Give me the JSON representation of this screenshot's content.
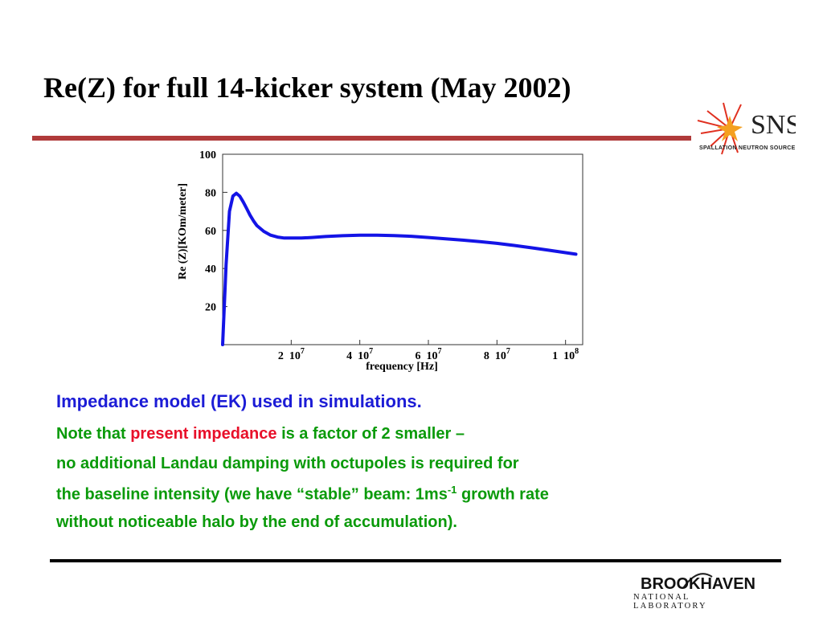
{
  "slide": {
    "title": "Re(Z) for full 14-kicker system (May 2002)"
  },
  "colors": {
    "title_rule": "#b03a3a",
    "curve": "#1414e6",
    "text_blue": "#1c1cd6",
    "text_green": "#0a9a0a",
    "text_red": "#e8102a"
  },
  "logos": {
    "sns": {
      "main": "SNS",
      "sub": "SPALLATION NEUTRON SOURCE",
      "icon": "starburst-logo-icon"
    },
    "bnl": {
      "name": "BROOKHAVEN",
      "sub": "NATIONAL LABORATORY"
    }
  },
  "chart_data": {
    "type": "line",
    "xlabel": "frequency [Hz]",
    "ylabel": "Re (Z)[KOm/meter]",
    "xlim": [
      0,
      105000000
    ],
    "ylim": [
      0,
      100
    ],
    "grid": false,
    "x_ticks": [
      {
        "coef": "2",
        "exp": "7",
        "value": 20000000
      },
      {
        "coef": "4",
        "exp": "7",
        "value": 40000000
      },
      {
        "coef": "6",
        "exp": "7",
        "value": 60000000
      },
      {
        "coef": "8",
        "exp": "7",
        "value": 80000000
      },
      {
        "coef": "1",
        "exp": "8",
        "value": 100000000
      }
    ],
    "y_ticks": [
      "20",
      "40",
      "60",
      "80",
      "100"
    ],
    "series": [
      {
        "x": [
          0,
          1000000,
          2000000,
          3000000,
          4000000,
          5000000,
          6000000,
          7000000,
          8000000,
          9000000,
          10000000,
          12000000,
          14000000,
          16000000,
          18000000,
          20000000,
          23000000,
          26000000,
          30000000,
          35000000,
          40000000,
          45000000,
          50000000,
          55000000,
          60000000,
          65000000,
          70000000,
          75000000,
          80000000,
          85000000,
          90000000,
          95000000,
          100000000,
          103000000
        ],
        "y": [
          0,
          42,
          70,
          78,
          79.5,
          78,
          75,
          71.5,
          68,
          65,
          62.5,
          59.5,
          57.5,
          56.5,
          56,
          56,
          56,
          56.3,
          56.8,
          57.2,
          57.5,
          57.5,
          57.3,
          56.9,
          56.3,
          55.6,
          54.9,
          54.1,
          53.2,
          52.1,
          50.9,
          49.6,
          48.3,
          47.5
        ]
      }
    ]
  },
  "text": {
    "line1": "Impedance model (EK) used in simulations.",
    "line2_a": "Note that ",
    "line2_b": "present impedance",
    "line2_c": " is a factor of 2 smaller –",
    "line3": "no additional Landau damping with octupoles is required for",
    "line4_a": "the baseline intensity (we  have “stable” beam: 1ms",
    "line4_sup": "-1",
    "line4_b": " growth rate",
    "line5": "without noticeable halo by the end of accumulation)."
  }
}
